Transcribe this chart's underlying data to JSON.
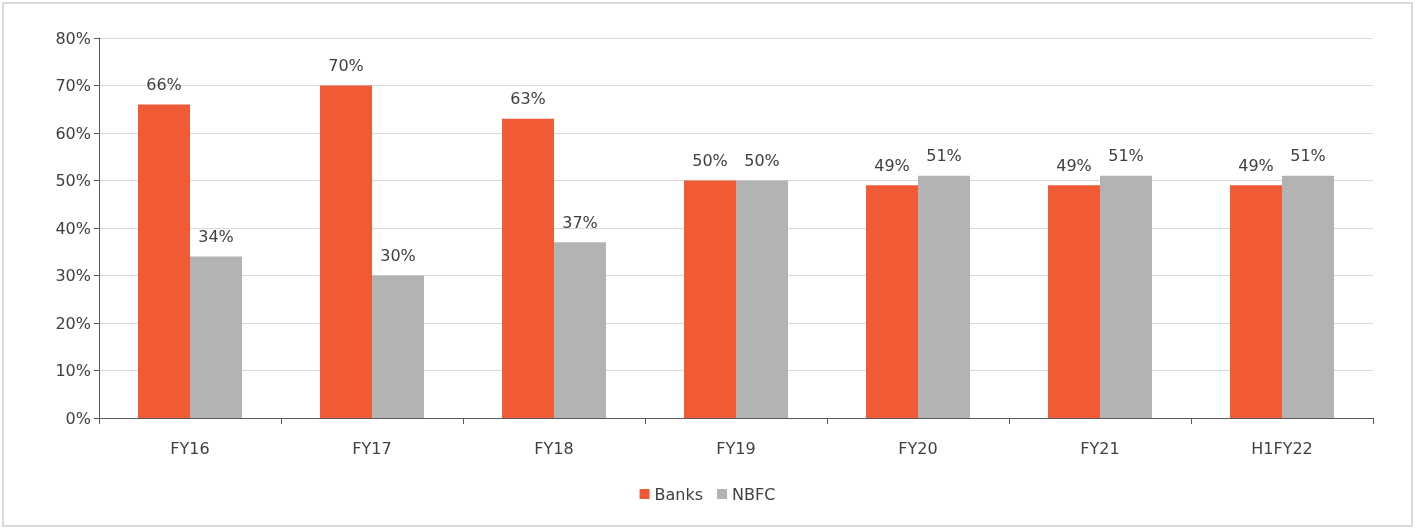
{
  "chart_data": {
    "type": "bar",
    "categories": [
      "FY16",
      "FY17",
      "FY18",
      "FY19",
      "FY20",
      "FY21",
      "H1FY22"
    ],
    "series": [
      {
        "name": "Banks",
        "color": "#f05a35",
        "values": [
          66,
          70,
          63,
          50,
          49,
          49,
          49
        ],
        "value_labels": [
          "66%",
          "70%",
          "63%",
          "50%",
          "49%",
          "49%",
          "49%"
        ]
      },
      {
        "name": "NBFC",
        "color": "#b3b3b3",
        "values": [
          34,
          30,
          37,
          50,
          51,
          51,
          51
        ],
        "value_labels": [
          "34%",
          "30%",
          "37%",
          "50%",
          "51%",
          "51%",
          "51%"
        ]
      }
    ],
    "ylim": [
      0,
      80
    ],
    "yticks": [
      {
        "value": 0,
        "label": "0%"
      },
      {
        "value": 10,
        "label": "10%"
      },
      {
        "value": 20,
        "label": "20%"
      },
      {
        "value": 30,
        "label": "30%"
      },
      {
        "value": 40,
        "label": "40%"
      },
      {
        "value": 50,
        "label": "50%"
      },
      {
        "value": 60,
        "label": "60%"
      },
      {
        "value": 70,
        "label": "70%"
      },
      {
        "value": 80,
        "label": "80%"
      }
    ],
    "grid": "y",
    "legend": "bottom"
  }
}
